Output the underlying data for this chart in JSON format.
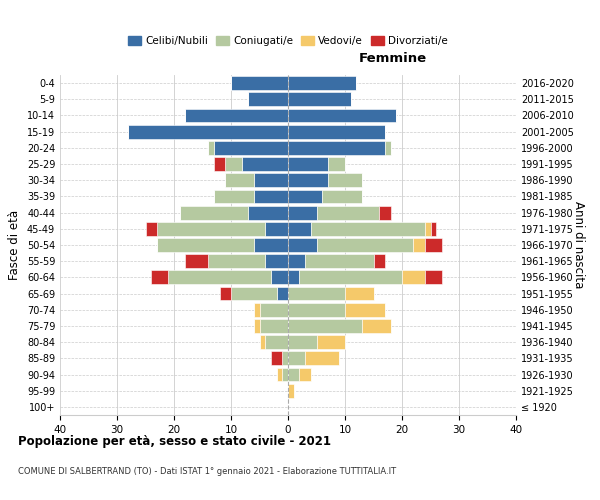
{
  "age_groups": [
    "100+",
    "95-99",
    "90-94",
    "85-89",
    "80-84",
    "75-79",
    "70-74",
    "65-69",
    "60-64",
    "55-59",
    "50-54",
    "45-49",
    "40-44",
    "35-39",
    "30-34",
    "25-29",
    "20-24",
    "15-19",
    "10-14",
    "5-9",
    "0-4"
  ],
  "birth_years": [
    "≤ 1920",
    "1921-1925",
    "1926-1930",
    "1931-1935",
    "1936-1940",
    "1941-1945",
    "1946-1950",
    "1951-1955",
    "1956-1960",
    "1961-1965",
    "1966-1970",
    "1971-1975",
    "1976-1980",
    "1981-1985",
    "1986-1990",
    "1991-1995",
    "1996-2000",
    "2001-2005",
    "2006-2010",
    "2011-2015",
    "2016-2020"
  ],
  "colors": {
    "celibi": "#3a6ea5",
    "coniugati": "#b5c9a0",
    "vedovi": "#f5c96a",
    "divorziati": "#cc2a2a"
  },
  "males": {
    "celibi": [
      0,
      0,
      0,
      0,
      0,
      0,
      0,
      2,
      3,
      4,
      6,
      4,
      7,
      6,
      6,
      8,
      13,
      28,
      18,
      7,
      10
    ],
    "coniugati": [
      0,
      0,
      1,
      1,
      4,
      5,
      5,
      8,
      18,
      10,
      17,
      19,
      12,
      7,
      5,
      3,
      1,
      0,
      0,
      0,
      0
    ],
    "vedovi": [
      0,
      0,
      1,
      0,
      1,
      1,
      1,
      0,
      0,
      0,
      0,
      0,
      0,
      0,
      0,
      0,
      0,
      0,
      0,
      0,
      0
    ],
    "divorziati": [
      0,
      0,
      0,
      2,
      0,
      0,
      0,
      2,
      3,
      4,
      0,
      2,
      0,
      0,
      0,
      2,
      0,
      0,
      0,
      0,
      0
    ]
  },
  "females": {
    "celibi": [
      0,
      0,
      0,
      0,
      0,
      0,
      0,
      0,
      2,
      3,
      5,
      4,
      5,
      6,
      7,
      7,
      17,
      17,
      19,
      11,
      12
    ],
    "coniugati": [
      0,
      0,
      2,
      3,
      5,
      13,
      10,
      10,
      18,
      12,
      17,
      20,
      11,
      7,
      6,
      3,
      1,
      0,
      0,
      0,
      0
    ],
    "vedovi": [
      0,
      1,
      2,
      6,
      5,
      5,
      7,
      5,
      4,
      0,
      2,
      1,
      0,
      0,
      0,
      0,
      0,
      0,
      0,
      0,
      0
    ],
    "divorziati": [
      0,
      0,
      0,
      0,
      0,
      0,
      0,
      0,
      3,
      2,
      3,
      1,
      2,
      0,
      0,
      0,
      0,
      0,
      0,
      0,
      0
    ]
  },
  "title": "Popolazione per età, sesso e stato civile - 2021",
  "subtitle": "COMUNE DI SALBERTRAND (TO) - Dati ISTAT 1° gennaio 2021 - Elaborazione TUTTITALIA.IT",
  "xlabel_right": "Femmine",
  "ylabel_left": "Fasce di età",
  "ylabel_right": "Anni di nascita",
  "xlim": 40,
  "legend_labels": [
    "Celibi/Nubili",
    "Coniugati/e",
    "Vedovi/e",
    "Divorziati/e"
  ],
  "background_color": "#ffffff",
  "grid_color": "#cccccc"
}
